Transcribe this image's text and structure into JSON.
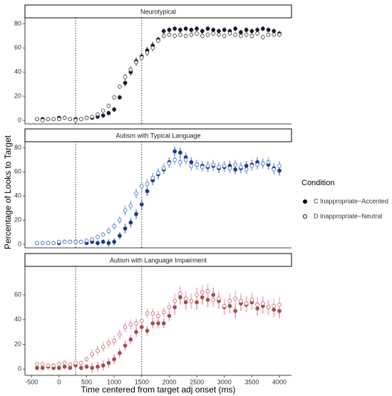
{
  "legend": {
    "title": "Condition"
  },
  "chart_data": [
    {
      "type": "errorpoint",
      "title": "Neurotypical",
      "x": [
        -400,
        -300,
        -200,
        -100,
        0,
        100,
        200,
        300,
        400,
        500,
        600,
        700,
        800,
        900,
        1000,
        1100,
        1200,
        1300,
        1400,
        1500,
        1600,
        1700,
        1800,
        1900,
        2000,
        2100,
        2200,
        2300,
        2400,
        2500,
        2600,
        2700,
        2800,
        2900,
        3000,
        3100,
        3200,
        3300,
        3400,
        3500,
        3600,
        3700,
        3800,
        3900,
        4000
      ],
      "xlim": [
        -620,
        4220
      ],
      "ylim": [
        -3,
        85
      ],
      "yticks": [
        0,
        20,
        40,
        60,
        80
      ],
      "vlines": [
        300,
        1500
      ],
      "series": [
        {
          "name": "C Inappropriate−Accented",
          "color": "#1b1b2a",
          "filled": true,
          "error_color": "#6d6d7a",
          "values": [
            1,
            1,
            1,
            1,
            2,
            2,
            1,
            1,
            1,
            2,
            2,
            3,
            4,
            6,
            9,
            19,
            31,
            40,
            49,
            53,
            58,
            62,
            67,
            74,
            75,
            76,
            75,
            76,
            75,
            76,
            74,
            76,
            75,
            74,
            75,
            74,
            76,
            73,
            75,
            74,
            75,
            76,
            75,
            74,
            72
          ],
          "errors": [
            1,
            1,
            1,
            1,
            1,
            1,
            1,
            1,
            1,
            1,
            1,
            1,
            1,
            2,
            2,
            2,
            3,
            3,
            3,
            3,
            3,
            3,
            2,
            2,
            2,
            2,
            2,
            2,
            2,
            2,
            2,
            2,
            2,
            2,
            2,
            2,
            2,
            2,
            2,
            2,
            2,
            2,
            2,
            2,
            2
          ]
        },
        {
          "name": "D Inappropriate−Neutral",
          "color": "#4a4a55",
          "filled": false,
          "error_color": "#9a9aa5",
          "values": [
            1,
            0,
            1,
            1,
            1,
            2,
            1,
            0,
            1,
            2,
            3,
            5,
            8,
            12,
            19,
            28,
            36,
            42,
            48,
            52,
            56,
            60,
            66,
            70,
            71,
            70,
            71,
            70,
            71,
            72,
            70,
            71,
            72,
            71,
            70,
            72,
            71,
            70,
            71,
            70,
            72,
            69,
            71,
            71,
            71
          ],
          "errors": [
            1,
            1,
            1,
            1,
            1,
            1,
            1,
            1,
            1,
            1,
            1,
            1,
            1,
            2,
            2,
            2,
            3,
            3,
            3,
            3,
            3,
            3,
            2,
            2,
            2,
            2,
            2,
            2,
            2,
            2,
            2,
            2,
            2,
            2,
            2,
            2,
            2,
            2,
            2,
            2,
            2,
            2,
            2,
            2,
            2
          ]
        }
      ]
    },
    {
      "type": "errorpoint",
      "title": "Autism with Typical Language",
      "ylabel": "Percentage of Looks to Target",
      "x": [
        -400,
        -300,
        -200,
        -100,
        0,
        100,
        200,
        300,
        400,
        500,
        600,
        700,
        800,
        900,
        1000,
        1100,
        1200,
        1300,
        1400,
        1500,
        1600,
        1700,
        1800,
        1900,
        2000,
        2100,
        2200,
        2300,
        2400,
        2500,
        2600,
        2700,
        2800,
        2900,
        3000,
        3100,
        3200,
        3300,
        3400,
        3500,
        3600,
        3700,
        3800,
        3900,
        4000
      ],
      "xlim": [
        -620,
        4220
      ],
      "ylim": [
        -3,
        85
      ],
      "yticks": [
        0,
        20,
        40,
        60,
        80
      ],
      "vlines": [
        300,
        1500
      ],
      "series": [
        {
          "name": "C Inappropriate−Accented",
          "color": "#23388a",
          "filled": true,
          "error_color": "#6f8fd8",
          "values": [
            1,
            1,
            1,
            1,
            1,
            2,
            2,
            2,
            2,
            1,
            2,
            1,
            2,
            1,
            2,
            7,
            13,
            18,
            25,
            33,
            44,
            53,
            58,
            62,
            68,
            77,
            76,
            72,
            68,
            66,
            65,
            64,
            65,
            63,
            64,
            65,
            62,
            63,
            65,
            66,
            68,
            67,
            66,
            63,
            61
          ],
          "errors": [
            1,
            1,
            1,
            1,
            1,
            1,
            1,
            1,
            1,
            1,
            2,
            2,
            2,
            3,
            3,
            3,
            4,
            4,
            4,
            4,
            4,
            4,
            4,
            4,
            4,
            4,
            4,
            4,
            4,
            4,
            4,
            4,
            4,
            4,
            4,
            4,
            4,
            4,
            4,
            4,
            4,
            4,
            4,
            4,
            4
          ]
        },
        {
          "name": "D Inappropriate−Neutral",
          "color": "#4f73c9",
          "filled": false,
          "error_color": "#8fb0ec",
          "values": [
            1,
            1,
            1,
            1,
            2,
            2,
            2,
            2,
            2,
            3,
            4,
            6,
            8,
            11,
            15,
            20,
            28,
            32,
            42,
            48,
            50,
            55,
            59,
            63,
            67,
            70,
            68,
            70,
            65,
            66,
            64,
            65,
            66,
            64,
            65,
            63,
            66,
            64,
            62,
            65,
            66,
            67,
            68,
            62,
            65
          ],
          "errors": [
            1,
            1,
            1,
            1,
            1,
            1,
            1,
            1,
            1,
            1,
            2,
            2,
            2,
            3,
            3,
            3,
            4,
            4,
            4,
            4,
            4,
            4,
            4,
            4,
            4,
            4,
            4,
            4,
            4,
            4,
            4,
            4,
            4,
            4,
            4,
            4,
            4,
            4,
            4,
            4,
            4,
            4,
            4,
            4,
            4
          ]
        }
      ]
    },
    {
      "type": "errorpoint",
      "title": "Autism with Language Impairment",
      "xlabel": "Time centered from target adj onset (ms)",
      "x": [
        -400,
        -300,
        -200,
        -100,
        0,
        100,
        200,
        300,
        400,
        500,
        600,
        700,
        800,
        900,
        1000,
        1100,
        1200,
        1300,
        1400,
        1500,
        1600,
        1700,
        1800,
        1900,
        2000,
        2100,
        2200,
        2300,
        2400,
        2500,
        2600,
        2700,
        2800,
        2900,
        3000,
        3100,
        3200,
        3300,
        3400,
        3500,
        3600,
        3700,
        3800,
        3900,
        4000
      ],
      "xlim": [
        -620,
        4220
      ],
      "xticks": [
        -500,
        0,
        500,
        1000,
        1500,
        2000,
        2500,
        3000,
        3500,
        4000
      ],
      "ylim": [
        -5,
        83
      ],
      "yticks": [
        0,
        20,
        40,
        60
      ],
      "vlines": [
        300,
        1500
      ],
      "series": [
        {
          "name": "C Inappropriate−Accented",
          "color": "#a0504c",
          "filled": true,
          "error_color": "#f09ab4",
          "values": [
            1,
            1,
            2,
            1,
            1,
            2,
            1,
            3,
            1,
            2,
            1,
            2,
            3,
            5,
            8,
            13,
            19,
            24,
            30,
            34,
            31,
            37,
            37,
            37,
            43,
            50,
            58,
            54,
            55,
            54,
            58,
            56,
            60,
            55,
            50,
            51,
            47,
            53,
            52,
            54,
            49,
            51,
            50,
            48,
            47
          ],
          "errors": [
            2,
            2,
            2,
            2,
            2,
            2,
            2,
            2,
            2,
            2,
            4,
            4,
            4,
            4,
            4,
            4,
            4,
            4,
            4,
            4,
            4,
            4,
            4,
            4,
            4,
            6,
            6,
            6,
            6,
            6,
            6,
            6,
            6,
            6,
            6,
            6,
            6,
            6,
            6,
            6,
            6,
            6,
            6,
            6,
            6
          ]
        },
        {
          "name": "D Inappropriate−Neutral",
          "color": "#c86f6c",
          "filled": false,
          "error_color": "#f6b3c6",
          "values": [
            4,
            4,
            3,
            3,
            4,
            5,
            4,
            5,
            5,
            8,
            12,
            15,
            18,
            21,
            23,
            28,
            34,
            36,
            37,
            39,
            45,
            45,
            43,
            46,
            50,
            55,
            61,
            57,
            55,
            60,
            62,
            63,
            56,
            57,
            51,
            55,
            57,
            55,
            53,
            56,
            52,
            53,
            50,
            51,
            52
          ],
          "errors": [
            2,
            2,
            2,
            2,
            2,
            2,
            2,
            2,
            2,
            2,
            4,
            4,
            4,
            4,
            4,
            4,
            4,
            4,
            4,
            4,
            4,
            4,
            4,
            4,
            4,
            6,
            6,
            6,
            6,
            6,
            6,
            6,
            6,
            6,
            6,
            6,
            6,
            6,
            6,
            6,
            6,
            6,
            6,
            6,
            6
          ]
        }
      ]
    }
  ]
}
